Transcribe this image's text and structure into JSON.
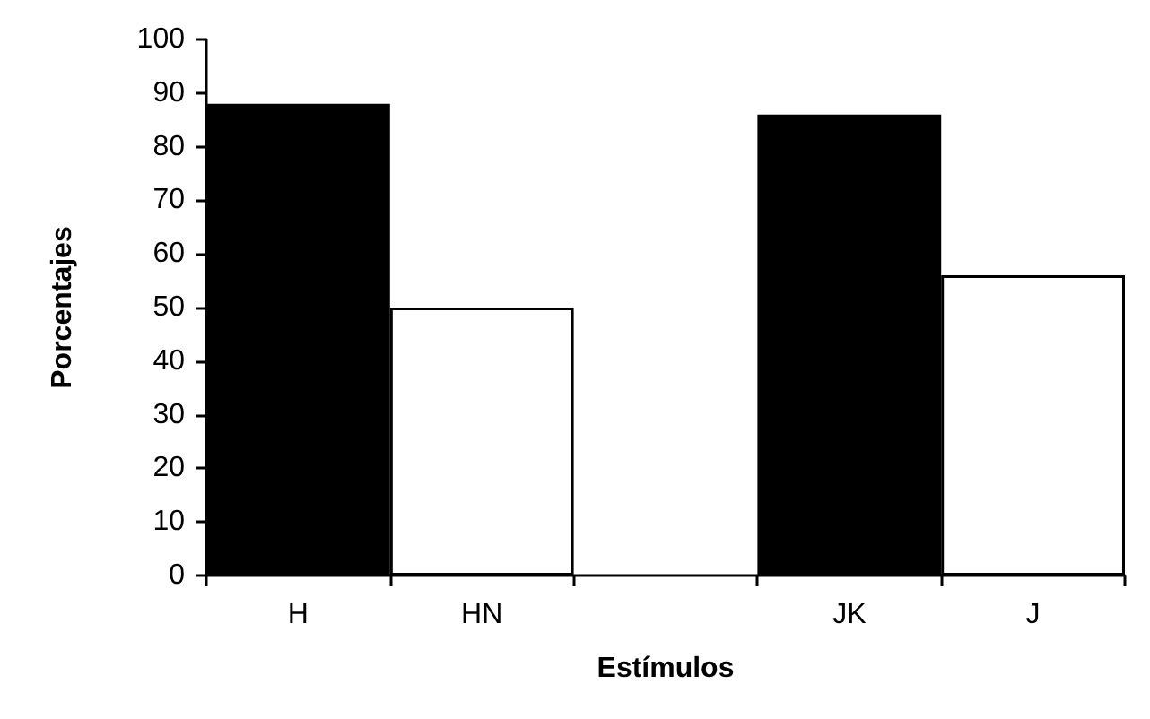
{
  "chart_data": {
    "type": "bar",
    "xlabel": "Estímulos",
    "ylabel": "Porcentajes",
    "categories": [
      "H",
      "HN",
      null,
      "JK",
      "J"
    ],
    "values": [
      88,
      50,
      null,
      86,
      56
    ],
    "colors": [
      "#000000",
      "#ffffff",
      "#ffffff",
      "#000000",
      "#ffffff"
    ],
    "ylim": [
      0,
      100
    ],
    "yticks": [
      0,
      10,
      20,
      30,
      40,
      50,
      60,
      70,
      80,
      90,
      100
    ],
    "grid": false
  }
}
